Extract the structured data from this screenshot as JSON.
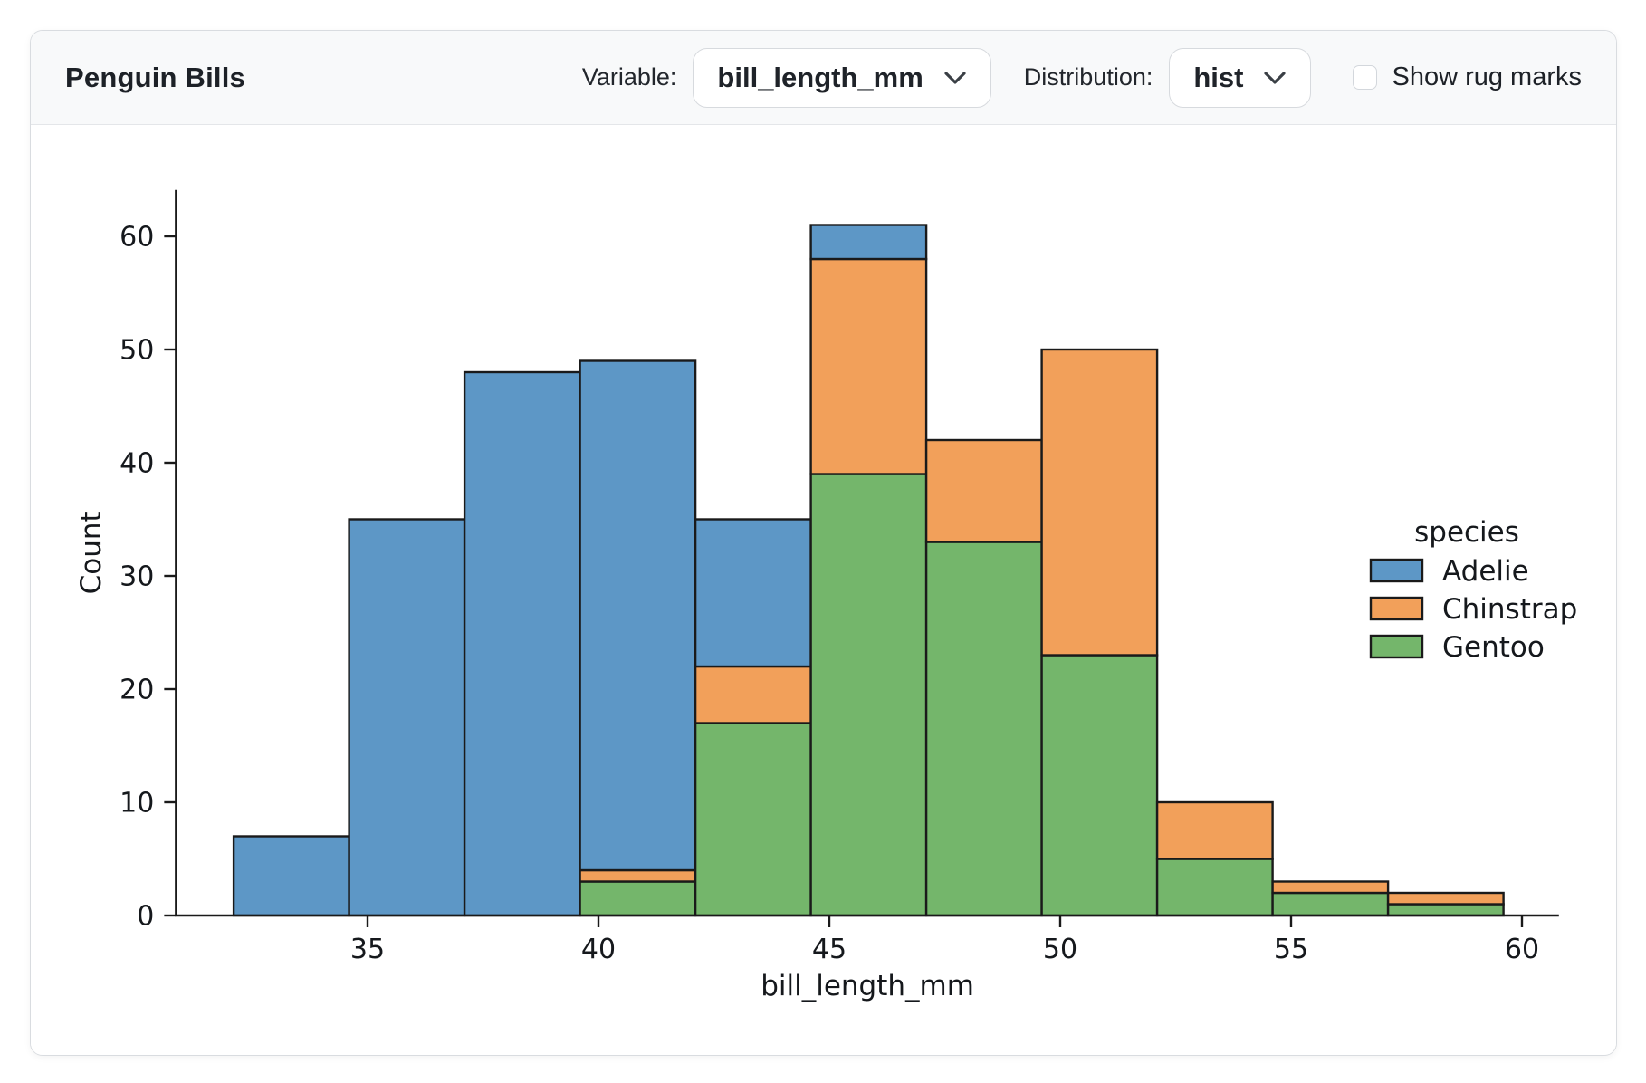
{
  "header": {
    "title": "Penguin Bills",
    "variable_label": "Variable:",
    "variable_value": "bill_length_mm",
    "distribution_label": "Distribution:",
    "distribution_value": "hist",
    "rug_label": "Show rug marks",
    "rug_checked": false
  },
  "chart_data": {
    "type": "bar",
    "subtype": "stacked-histogram",
    "title": "",
    "xlabel": "bill_length_mm",
    "ylabel": "Count",
    "bin_edges": [
      32.1,
      34.6,
      37.1,
      39.6,
      42.1,
      44.6,
      47.1,
      49.6,
      52.1,
      54.6,
      57.1,
      59.6
    ],
    "x_ticks": [
      35,
      40,
      45,
      50,
      55,
      60
    ],
    "y_ticks": [
      0,
      10,
      20,
      30,
      40,
      50,
      60
    ],
    "xlim": [
      30.85,
      60.8
    ],
    "ylim": [
      0,
      64.1
    ],
    "grid": false,
    "stack_order_bottom_to_top": [
      "Gentoo",
      "Chinstrap",
      "Adelie"
    ],
    "series": [
      {
        "name": "Adelie",
        "color": "#5D97C6",
        "values": [
          7,
          35,
          48,
          45,
          13,
          3,
          0,
          0,
          0,
          0,
          0
        ]
      },
      {
        "name": "Chinstrap",
        "color": "#F2A05A",
        "values": [
          0,
          0,
          0,
          1,
          5,
          19,
          9,
          27,
          5,
          1,
          1
        ]
      },
      {
        "name": "Gentoo",
        "color": "#74B66B",
        "values": [
          0,
          0,
          0,
          3,
          17,
          39,
          33,
          23,
          5,
          2,
          1
        ]
      }
    ],
    "totals": [
      7,
      35,
      48,
      49,
      35,
      61,
      42,
      50,
      10,
      3,
      2
    ],
    "edge_color": "#1a1a1a",
    "legend": {
      "title": "species",
      "position": "center-right",
      "entries": [
        "Adelie",
        "Chinstrap",
        "Gentoo"
      ]
    }
  }
}
